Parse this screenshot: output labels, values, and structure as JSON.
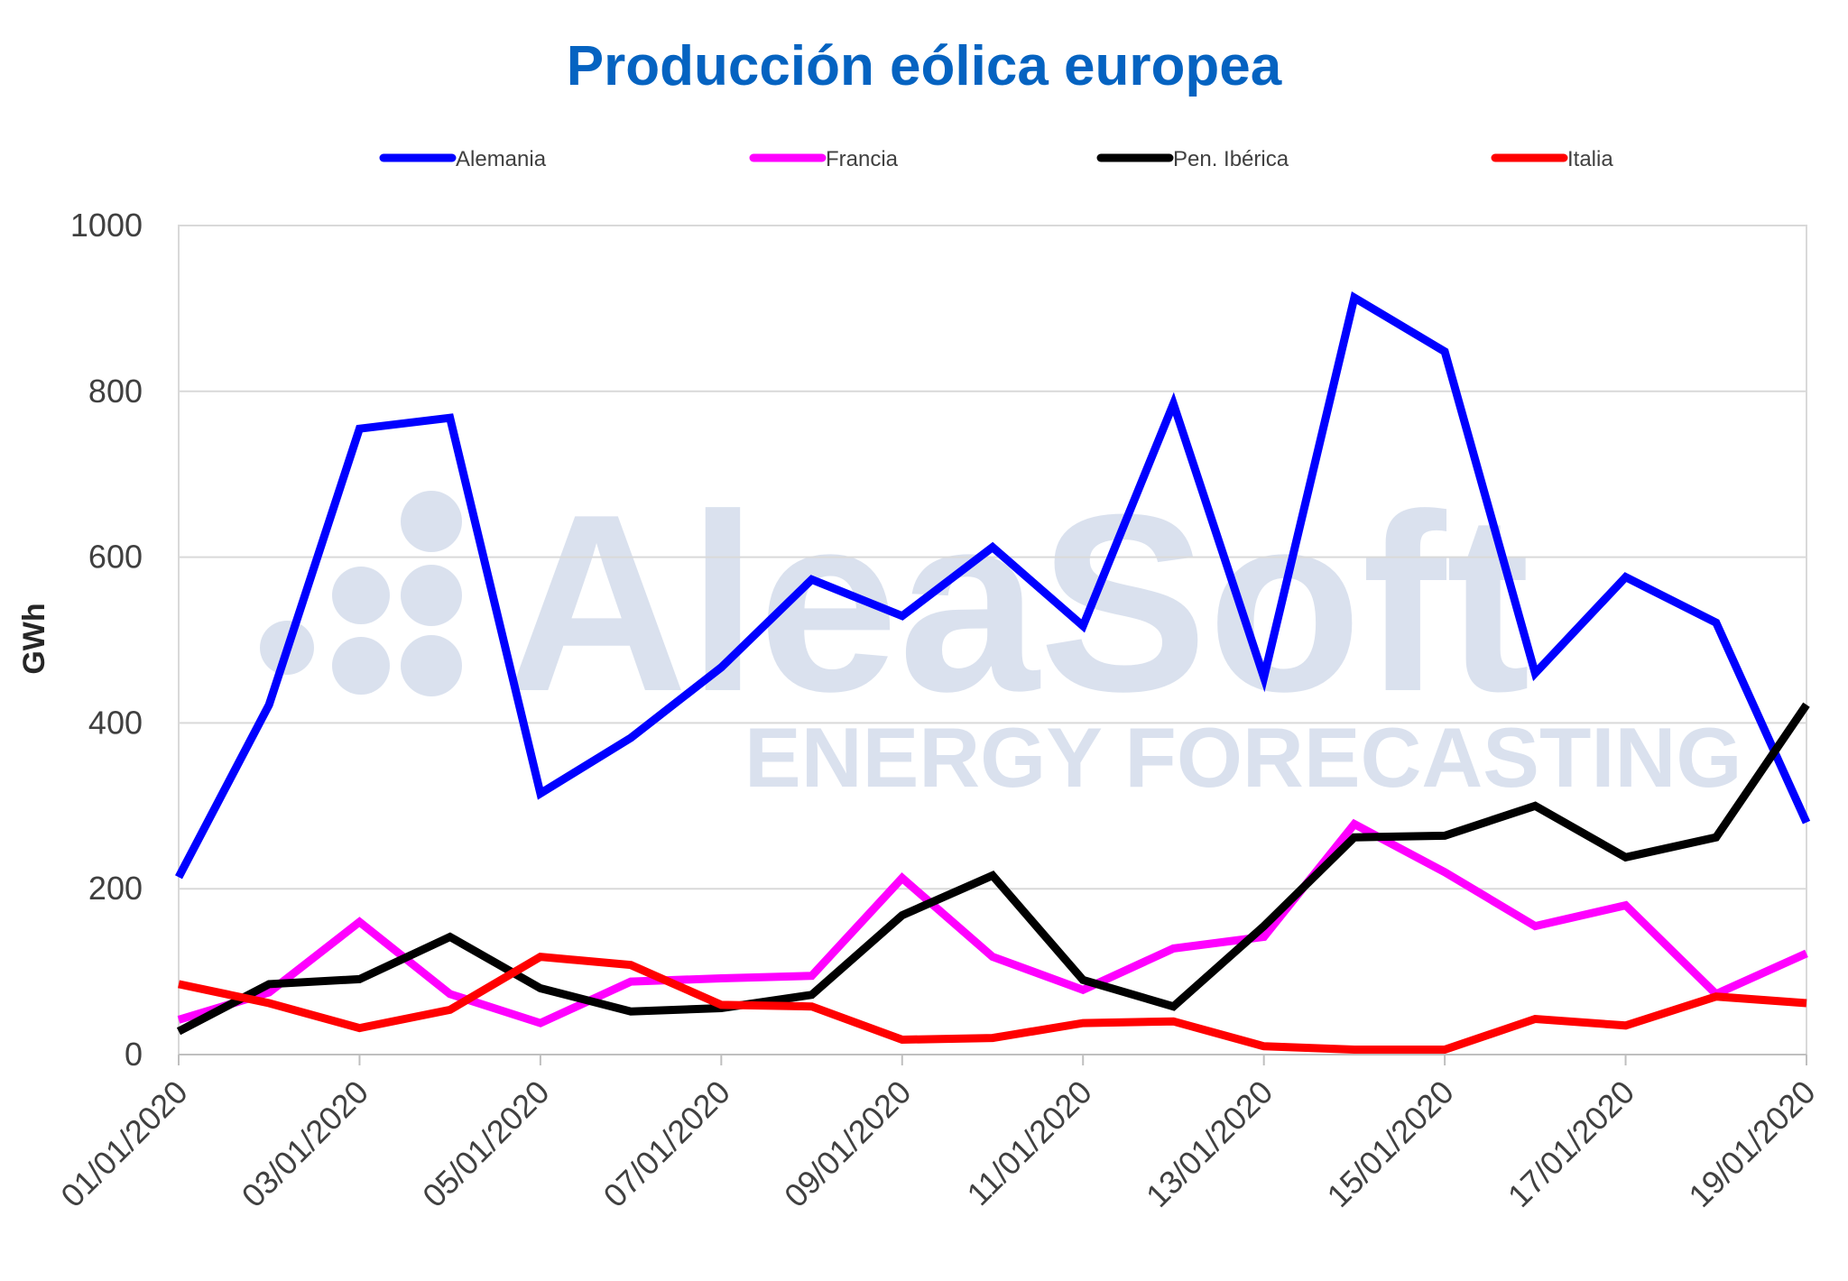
{
  "chart_data": {
    "type": "line",
    "title": "Producción eólica europea",
    "xlabel": "",
    "ylabel": "GWh",
    "ylim": [
      0,
      1000
    ],
    "yticks": [
      "0",
      "200",
      "400",
      "600",
      "800",
      "1000"
    ],
    "x": [
      "01/01/2020",
      "02/01/2020",
      "03/01/2020",
      "04/01/2020",
      "05/01/2020",
      "06/01/2020",
      "07/01/2020",
      "08/01/2020",
      "09/01/2020",
      "10/01/2020",
      "11/01/2020",
      "12/01/2020",
      "13/01/2020",
      "14/01/2020",
      "15/01/2020",
      "16/01/2020",
      "17/01/2020",
      "18/01/2020",
      "19/01/2020"
    ],
    "xtick_labels": [
      "01/01/2020",
      "03/01/2020",
      "05/01/2020",
      "07/01/2020",
      "09/01/2020",
      "11/01/2020",
      "13/01/2020",
      "15/01/2020",
      "17/01/2020",
      "19/01/2020"
    ],
    "grid": true,
    "legend_position": "top",
    "series": [
      {
        "name": "Alemania",
        "color": "#0000ff",
        "values": [
          214,
          422,
          755,
          768,
          315,
          382,
          467,
          573,
          529,
          612,
          517,
          785,
          455,
          913,
          848,
          460,
          576,
          521,
          280
        ]
      },
      {
        "name": "Francia",
        "color": "#ff00ff",
        "values": [
          42,
          75,
          160,
          73,
          38,
          88,
          92,
          95,
          213,
          118,
          78,
          128,
          142,
          278,
          220,
          155,
          180,
          73,
          122
        ]
      },
      {
        "name": "Pen. Ibérica",
        "color": "#000000",
        "values": [
          28,
          85,
          91,
          142,
          80,
          52,
          56,
          72,
          168,
          216,
          90,
          58,
          155,
          262,
          264,
          300,
          238,
          262,
          422
        ]
      },
      {
        "name": "Italia",
        "color": "#ff0000",
        "values": [
          85,
          62,
          32,
          54,
          118,
          108,
          60,
          58,
          18,
          20,
          38,
          40,
          10,
          6,
          6,
          43,
          35,
          70,
          62
        ]
      }
    ]
  },
  "watermark": {
    "brand": "AleaSoft",
    "tagline": "ENERGY FORECASTING"
  }
}
